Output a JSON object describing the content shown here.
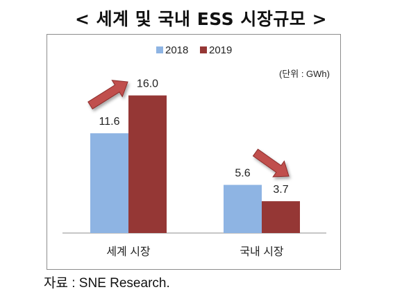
{
  "page": {
    "title": "< 세계 및 국내 ESS 시장규모 >",
    "source": "자료 : SNE Research."
  },
  "chart_data": {
    "type": "bar",
    "title": "< 세계 및 국내 ESS 시장규모 >",
    "unit_label": "(단위 : GWh)",
    "categories": [
      "세계 시장",
      "국내 시장"
    ],
    "series": [
      {
        "name": "2018",
        "color": "#8eb4e3",
        "values": [
          11.6,
          5.6
        ]
      },
      {
        "name": "2019",
        "color": "#953735",
        "values": [
          16.0,
          3.7
        ]
      }
    ],
    "data_labels": [
      [
        "11.6",
        "5.6"
      ],
      [
        "16.0",
        "3.7"
      ]
    ],
    "ylim": [
      0,
      20
    ],
    "grid": false,
    "legend": "top-center",
    "annotations": [
      {
        "type": "arrow",
        "direction": "up",
        "category": "세계 시장",
        "color": "#c0504d"
      },
      {
        "type": "arrow",
        "direction": "down",
        "category": "국내 시장",
        "color": "#c0504d"
      }
    ]
  }
}
